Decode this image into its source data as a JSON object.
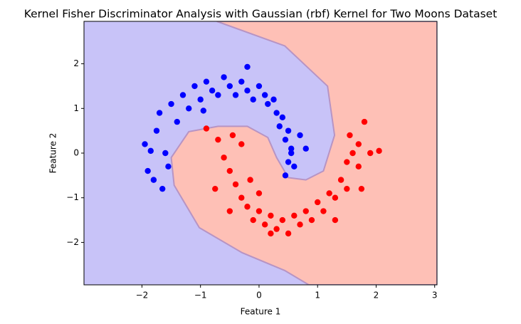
{
  "chart_data": {
    "type": "scatter",
    "title": "Kernel Fisher Discriminator Analysis with Gaussian (rbf) Kernel for Two Moons Dataset",
    "xlabel": "Feature 1",
    "ylabel": "Feature 2",
    "xlim": [
      -2.99,
      3.04
    ],
    "ylim": [
      -2.95,
      2.95
    ],
    "xticks": [
      {
        "value": -2,
        "label": "−2"
      },
      {
        "value": -1,
        "label": "−1"
      },
      0,
      1,
      2,
      3
    ],
    "yticks": [
      {
        "value": -2,
        "label": "−2"
      },
      {
        "value": -1,
        "label": "−1"
      },
      0,
      1,
      2
    ],
    "background_color": "#c8c3f8",
    "decision_region": {
      "color": "#fec0b6",
      "edge_color": "#b794c4",
      "x": [
        -0.72,
        0.44,
        1.17,
        1.29,
        1.1,
        0.8,
        0.5,
        0.3,
        0.15,
        -0.2,
        -0.7,
        -1.2,
        -1.5,
        -1.45,
        -1.02,
        -0.29,
        0.44,
        0.85
      ],
      "y": [
        2.95,
        2.4,
        1.5,
        0.4,
        -0.4,
        -0.6,
        -0.55,
        -0.1,
        0.35,
        0.6,
        0.6,
        0.48,
        -0.1,
        -0.72,
        -1.67,
        -2.23,
        -2.63,
        -2.95
      ]
    },
    "series": [
      {
        "color": "#0000ff",
        "x": [
          -1.95,
          -1.9,
          -1.8,
          -1.75,
          -1.7,
          -1.6,
          -1.55,
          -1.5,
          -1.4,
          -1.3,
          -1.2,
          -1.1,
          -1.0,
          -0.9,
          -0.8,
          -0.7,
          -0.6,
          -0.5,
          -0.4,
          -0.3,
          -0.2,
          -0.1,
          0.0,
          0.1,
          0.15,
          0.25,
          0.3,
          0.35,
          0.4,
          0.45,
          0.5,
          0.55,
          0.5,
          0.6,
          0.45,
          0.55,
          -1.65,
          -1.85,
          -0.95,
          -0.2,
          0.8,
          0.7
        ],
        "values": [
          0.2,
          -0.4,
          -0.6,
          0.5,
          0.9,
          0.0,
          -0.3,
          1.1,
          0.7,
          1.3,
          1.0,
          1.5,
          1.2,
          1.6,
          1.4,
          1.3,
          1.7,
          1.5,
          1.3,
          1.6,
          1.4,
          1.2,
          1.5,
          1.3,
          1.1,
          1.2,
          0.9,
          0.6,
          0.8,
          0.3,
          0.5,
          0.1,
          -0.2,
          -0.3,
          -0.5,
          0.0,
          -0.8,
          0.05,
          0.95,
          1.93,
          0.1,
          0.4
        ]
      },
      {
        "color": "#ff0000",
        "x": [
          -0.9,
          -0.75,
          -0.7,
          -0.6,
          -0.5,
          -0.4,
          -0.3,
          -0.5,
          -0.2,
          -0.1,
          0.0,
          0.1,
          0.2,
          0.3,
          0.4,
          0.5,
          0.6,
          0.7,
          0.8,
          0.9,
          1.0,
          1.1,
          1.2,
          1.3,
          1.4,
          1.5,
          1.5,
          1.6,
          1.55,
          1.7,
          1.8,
          1.7,
          1.9,
          2.05,
          1.75,
          -0.3,
          -0.45,
          -0.15,
          0.0,
          1.3,
          0.2
        ],
        "values": [
          0.55,
          -0.8,
          0.3,
          -0.1,
          -0.4,
          -0.7,
          -1.0,
          -1.3,
          -1.2,
          -1.5,
          -1.3,
          -1.6,
          -1.4,
          -1.7,
          -1.5,
          -1.8,
          -1.4,
          -1.6,
          -1.3,
          -1.5,
          -1.1,
          -1.3,
          -0.9,
          -1.0,
          -0.6,
          -0.8,
          -0.2,
          0.0,
          0.4,
          0.2,
          0.7,
          -0.3,
          0.0,
          0.05,
          -0.8,
          0.2,
          0.4,
          -0.6,
          -0.9,
          -1.5,
          -1.8
        ]
      }
    ]
  }
}
